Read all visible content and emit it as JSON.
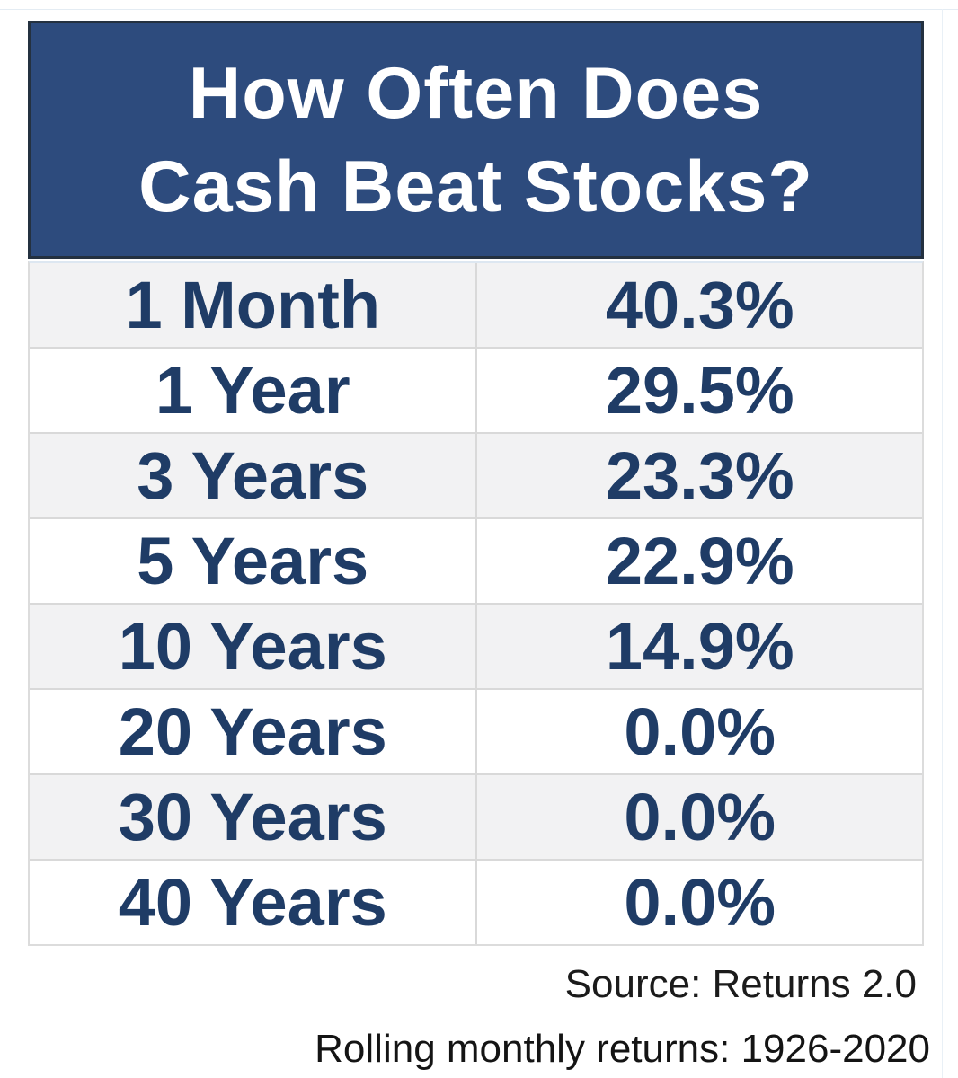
{
  "header": {
    "title_line1": "How Often Does",
    "title_line2": "Cash Beat Stocks?",
    "bg_color": "#2d4b7d",
    "border_color": "#243140",
    "text_color": "#ffffff"
  },
  "table": {
    "rows": [
      {
        "period": "1 Month",
        "value": "40.3%"
      },
      {
        "period": "1 Year",
        "value": "29.5%"
      },
      {
        "period": "3 Years",
        "value": "23.3%"
      },
      {
        "period": "5 Years",
        "value": "22.9%"
      },
      {
        "period": "10 Years",
        "value": "14.9%"
      },
      {
        "period": "20 Years",
        "value": "0.0%"
      },
      {
        "period": "30 Years",
        "value": "0.0%"
      },
      {
        "period": "40 Years",
        "value": "0.0%"
      }
    ],
    "text_color": "#1f3c66",
    "odd_row_bg": "#f2f2f3",
    "even_row_bg": "#ffffff",
    "border_color": "#d9d9d9"
  },
  "footnotes": {
    "source": "Source: Returns 2.0",
    "methodology": "Rolling monthly returns: 1926-2020"
  },
  "chart_data": {
    "type": "table",
    "title": "How Often Does Cash Beat Stocks?",
    "categories": [
      "1 Month",
      "1 Year",
      "3 Years",
      "5 Years",
      "10 Years",
      "20 Years",
      "30 Years",
      "40 Years"
    ],
    "values": [
      40.3,
      29.5,
      23.3,
      22.9,
      14.9,
      0.0,
      0.0,
      0.0
    ],
    "unit": "%",
    "source": "Returns 2.0",
    "note": "Rolling monthly returns: 1926-2020"
  }
}
